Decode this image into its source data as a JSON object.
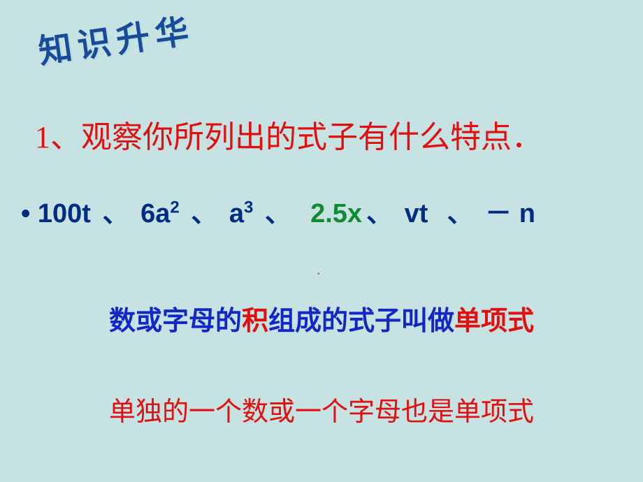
{
  "colors": {
    "background": "#c6e2e2",
    "banner": "#1a4b9b",
    "question": "#e20f0f",
    "monomial_blue": "#002c84",
    "monomial_green": "#118a32",
    "def_blue": "#1326c7",
    "def_red": "#e20f0f",
    "def2_red": "#e20f0f"
  },
  "fonts": {
    "banner_size": 48,
    "question_size": 44,
    "expr_size": 38,
    "def_size": 38
  },
  "banner": "知识升华",
  "question": "1、观察你所列出的式子有什么特点．",
  "expressions": {
    "e1": "100t",
    "e2_base": "6a",
    "e2_exp": "2",
    "e3_base": "a",
    "e3_exp": "3",
    "e4": "2.5x",
    "e5": "vt",
    "e6_prefix": "－",
    "e6_var": "n",
    "sep": "、"
  },
  "centerdot": "．",
  "definition": {
    "p1": "数或字母的",
    "p2": "积",
    "p3": "组成的式子叫做",
    "p4": "单项式"
  },
  "definition2": "单独的一个数或一个字母也是单项式"
}
